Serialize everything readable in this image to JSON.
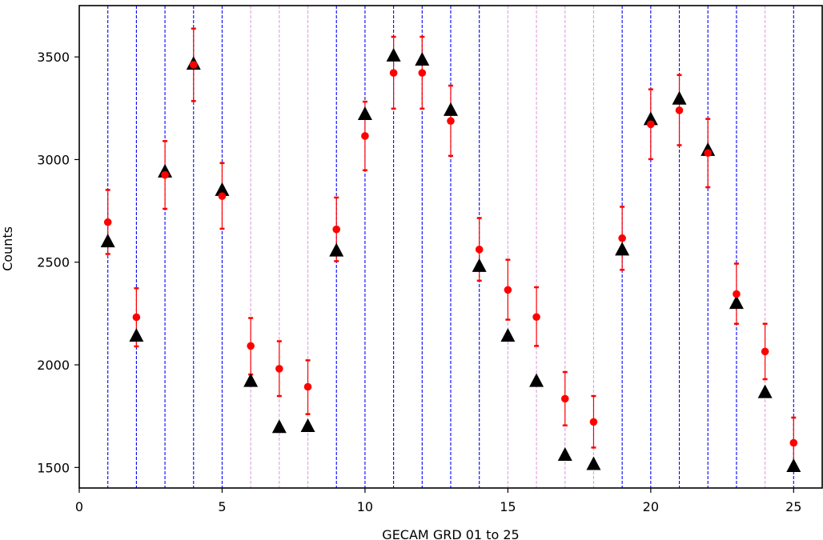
{
  "chart_data": {
    "type": "scatter",
    "title": "",
    "xlabel": "GECAM GRD 01 to 25",
    "ylabel": "Counts",
    "xlim": [
      0,
      26
    ],
    "ylim": [
      1400,
      3750
    ],
    "xticks": [
      0,
      5,
      10,
      15,
      20,
      25
    ],
    "yticks": [
      1500,
      2000,
      2500,
      3000,
      3500
    ],
    "grid": false,
    "legend": "none",
    "detector_lines": [
      {
        "x": 1,
        "color": "#0000ff"
      },
      {
        "x": 2,
        "color": "#0000ff"
      },
      {
        "x": 3,
        "color": "#0000ff"
      },
      {
        "x": 4,
        "color": "#0000ff"
      },
      {
        "x": 5,
        "color": "#0000ff"
      },
      {
        "x": 6,
        "color": "#dda0dd"
      },
      {
        "x": 7,
        "color": "#dda0dd"
      },
      {
        "x": 8,
        "color": "#dda0dd"
      },
      {
        "x": 9,
        "color": "#0000ff"
      },
      {
        "x": 10,
        "color": "#0000ff"
      },
      {
        "x": 11,
        "color": "#0000ff"
      },
      {
        "x": 12,
        "color": "#0000ff"
      },
      {
        "x": 13,
        "color": "#0000ff"
      },
      {
        "x": 14,
        "color": "#0000ff"
      },
      {
        "x": 15,
        "color": "#dda0dd"
      },
      {
        "x": 16,
        "color": "#dda0dd"
      },
      {
        "x": 17,
        "color": "#dda0dd"
      },
      {
        "x": 18,
        "color": "#dda0dd"
      },
      {
        "x": 19,
        "color": "#0000ff"
      },
      {
        "x": 20,
        "color": "#0000ff"
      },
      {
        "x": 21,
        "color": "#0000ff"
      },
      {
        "x": 22,
        "color": "#0000ff"
      },
      {
        "x": 23,
        "color": "#0000ff"
      },
      {
        "x": 24,
        "color": "#dda0dd"
      },
      {
        "x": 25,
        "color": "#0000ff"
      }
    ],
    "series": [
      {
        "marker": "circle",
        "color": "#ff0000",
        "x": [
          1,
          2,
          3,
          4,
          5,
          6,
          7,
          8,
          9,
          10,
          11,
          12,
          13,
          14,
          15,
          16,
          17,
          18,
          19,
          20,
          21,
          22,
          23,
          24,
          25
        ],
        "y": [
          2695,
          2232,
          2925,
          3462,
          2822,
          2092,
          1981,
          1893,
          2660,
          3115,
          3422,
          3422,
          3188,
          2562,
          2365,
          2233,
          1835,
          1722,
          2617,
          3172,
          3240,
          3032,
          2345,
          2065,
          1620
        ],
        "err_low": [
          2540,
          2090,
          2760,
          3285,
          2663,
          1953,
          1848,
          1760,
          2505,
          2948,
          3248,
          3248,
          3018,
          2410,
          2220,
          2092,
          1705,
          1597,
          2463,
          3002,
          3070,
          2865,
          2200,
          1930,
          1500
        ],
        "err_high": [
          2852,
          2373,
          3090,
          3638,
          2983,
          2228,
          2115,
          2022,
          2815,
          3282,
          3598,
          3598,
          3360,
          2715,
          2512,
          2378,
          1965,
          1848,
          2770,
          3342,
          3412,
          3198,
          2493,
          2200,
          1743
        ]
      },
      {
        "marker": "triangle",
        "color": "#000000",
        "x": [
          1,
          2,
          3,
          4,
          5,
          6,
          7,
          8,
          9,
          10,
          11,
          12,
          13,
          14,
          15,
          16,
          17,
          18,
          19,
          20,
          21,
          22,
          23,
          24,
          25
        ],
        "y": [
          2600,
          2140,
          2940,
          3465,
          2850,
          1920,
          1695,
          1700,
          2555,
          3220,
          3505,
          3485,
          3240,
          2480,
          2140,
          1920,
          1560,
          1515,
          2560,
          3195,
          3295,
          3045,
          2300,
          1865,
          1505
        ]
      }
    ]
  }
}
